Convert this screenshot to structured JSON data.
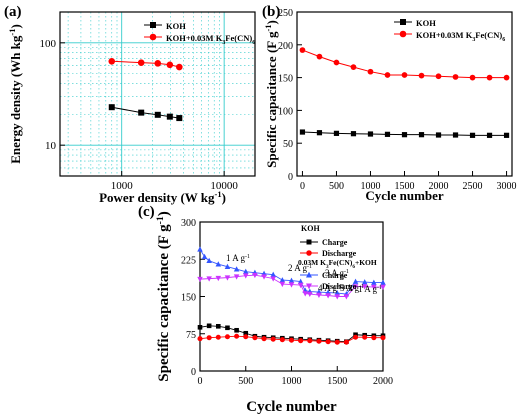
{
  "chart_data": [
    {
      "panel": "(a)",
      "type": "line",
      "xscale": "log",
      "yscale": "log",
      "xlabel": "Power density (W kg-1)",
      "ylabel": "Energy density (Wh kg-1)",
      "xlim": [
        250,
        20000
      ],
      "ylim": [
        5,
        200
      ],
      "xticks": [
        "1000",
        "10000"
      ],
      "yticks": [
        "10",
        "100"
      ],
      "grid": "cyan dotted",
      "legend": "top-right",
      "series": [
        {
          "name": "KOH",
          "color": "#000000",
          "marker": "square",
          "x": [
            800,
            1550,
            2250,
            2950,
            3650
          ],
          "y": [
            23.5,
            20.8,
            19.8,
            19.0,
            18.4
          ]
        },
        {
          "name": "KOH+0.03M K3Fe(CN)6",
          "color": "#ff0000",
          "marker": "circle",
          "x": [
            800,
            1550,
            2250,
            2950,
            3650
          ],
          "y": [
            66,
            64,
            63,
            61,
            58
          ]
        }
      ]
    },
    {
      "panel": "(b)",
      "type": "line",
      "xlabel": "Cycle number",
      "ylabel": "Specific capacitance (F g-1)",
      "xlim": [
        -80,
        3080
      ],
      "ylim": [
        0,
        250
      ],
      "xticks": [
        "0",
        "500",
        "1000",
        "1500",
        "2000",
        "2500",
        "3000"
      ],
      "yticks": [
        "0",
        "50",
        "100",
        "150",
        "200",
        "250"
      ],
      "legend": "top-right",
      "series": [
        {
          "name": "KOH",
          "color": "#000000",
          "marker": "square",
          "x": [
            0,
            250,
            500,
            750,
            1000,
            1250,
            1500,
            1750,
            2000,
            2250,
            2500,
            2750,
            3000
          ],
          "y": [
            67,
            66,
            65,
            64.5,
            64,
            63.5,
            63,
            63,
            62.5,
            62.5,
            62,
            62,
            62
          ]
        },
        {
          "name": "KOH+0.03M K3Fe(CN)6",
          "color": "#ff0000",
          "marker": "circle",
          "x": [
            0,
            250,
            500,
            750,
            1000,
            1250,
            1500,
            1750,
            2000,
            2250,
            2500,
            2750,
            3000
          ],
          "y": [
            192,
            182,
            173,
            166,
            159,
            154,
            154,
            153,
            152,
            151,
            150,
            150,
            150
          ]
        }
      ]
    },
    {
      "panel": "(c)",
      "type": "line",
      "xlabel": "Cycle number",
      "ylabel": "Specific capacitance (F g-1)",
      "xlim": [
        0,
        2000
      ],
      "ylim": [
        0,
        300
      ],
      "xticks": [
        "0",
        "500",
        "1000",
        "1500",
        "2000"
      ],
      "yticks": [
        "0",
        "75",
        "150",
        "225",
        "300"
      ],
      "legend": "top-right",
      "legend_groups": [
        "KOH",
        "0.03M K3Fe(CN)6+KOH"
      ],
      "annotations": [
        "1 A g-1",
        "2 A g-1",
        "3 A g-1",
        "4 A g-1",
        "5 A g-1",
        "1 A g-1"
      ],
      "series": [
        {
          "name": "Charge",
          "group": "KOH",
          "color": "#000000",
          "marker": "square",
          "x": [
            0,
            100,
            200,
            300,
            400,
            500,
            600,
            700,
            800,
            900,
            1000,
            1100,
            1200,
            1300,
            1400,
            1500,
            1600,
            1700,
            1800,
            1900,
            2000
          ],
          "y": [
            88,
            91,
            90,
            87,
            82,
            76,
            70,
            68,
            67,
            66,
            65,
            64,
            63,
            62,
            61,
            60,
            59,
            73,
            72,
            71,
            71
          ]
        },
        {
          "name": "Discharge",
          "group": "KOH",
          "color": "#ff0000",
          "marker": "circle",
          "x": [
            0,
            100,
            200,
            300,
            400,
            500,
            600,
            700,
            800,
            900,
            1000,
            1100,
            1200,
            1300,
            1400,
            1500,
            1600,
            1700,
            1800,
            1900,
            2000
          ],
          "y": [
            65,
            67,
            68,
            69,
            70,
            69,
            67,
            65,
            64,
            63,
            62,
            61,
            61,
            60,
            59,
            58,
            58,
            68,
            68,
            67,
            67
          ]
        },
        {
          "name": "Charge",
          "group": "0.03M K3Fe(CN)6+KOH",
          "color": "#3355ff",
          "marker": "triangle-up",
          "x": [
            0,
            50,
            100,
            200,
            300,
            400,
            500,
            600,
            700,
            800,
            900,
            1000,
            1100,
            1150,
            1200,
            1300,
            1400,
            1500,
            1600,
            1700,
            1800,
            1900,
            2000
          ],
          "y": [
            245,
            230,
            222,
            215,
            210,
            205,
            200,
            198,
            196,
            194,
            183,
            182,
            180,
            162,
            160,
            159,
            158,
            157,
            155,
            180,
            179,
            178,
            178
          ]
        },
        {
          "name": "Discharge",
          "group": "0.03M K3Fe(CN)6+KOH",
          "color": "#cc33ff",
          "marker": "triangle-down",
          "x": [
            0,
            100,
            200,
            300,
            400,
            500,
            600,
            700,
            800,
            900,
            1000,
            1100,
            1150,
            1200,
            1300,
            1400,
            1500,
            1600,
            1700,
            1800,
            1900,
            2000
          ],
          "y": [
            185,
            186,
            187,
            188,
            190,
            192,
            193,
            190,
            186,
            175,
            174,
            173,
            156,
            155,
            153,
            152,
            150,
            150,
            170,
            170,
            169,
            169
          ]
        }
      ]
    }
  ],
  "labels": {
    "panel_a": "(a)",
    "panel_b": "(b)",
    "panel_c": "(c)"
  }
}
